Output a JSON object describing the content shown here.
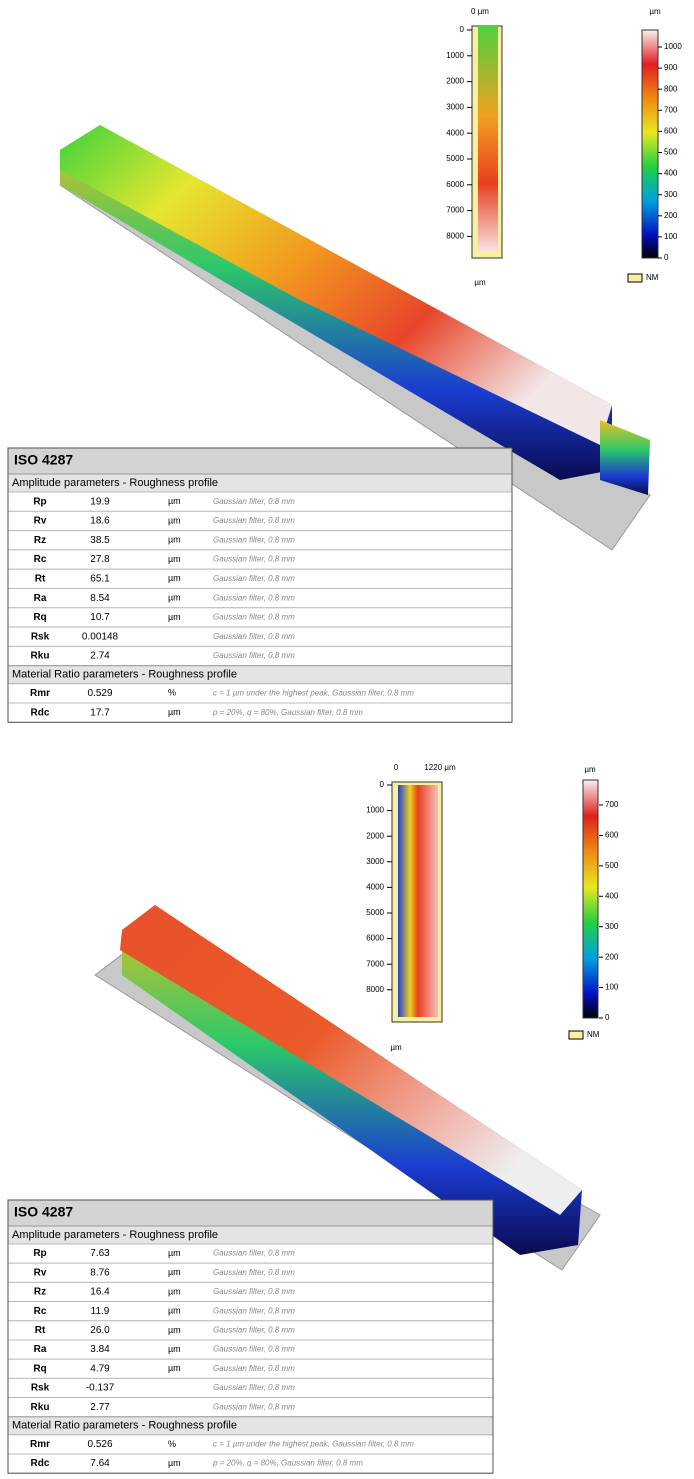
{
  "panels": [
    {
      "map": {
        "x_labels": [
          "0 µm"
        ],
        "y_ticks": [
          "0",
          "1000",
          "2000",
          "3000",
          "4000",
          "5000",
          "6000",
          "7000",
          "8000"
        ],
        "unit": "µm"
      },
      "colorbar": {
        "unit": "µm",
        "ticks": [
          "1000",
          "900",
          "800",
          "700",
          "600",
          "500",
          "400",
          "300",
          "200",
          "100",
          "0"
        ],
        "legend": "NM"
      },
      "table": {
        "title": "ISO 4287",
        "sections": [
          {
            "heading": "Amplitude parameters - Roughness profile",
            "rows": [
              {
                "name": "Rp",
                "value": "19.9",
                "unit": "µm",
                "note": "Gaussian filter, 0.8 mm"
              },
              {
                "name": "Rv",
                "value": "18.6",
                "unit": "µm",
                "note": "Gaussian filter, 0.8 mm"
              },
              {
                "name": "Rz",
                "value": "38.5",
                "unit": "µm",
                "note": "Gaussian filter, 0.8 mm"
              },
              {
                "name": "Rc",
                "value": "27.8",
                "unit": "µm",
                "note": "Gaussian filter, 0.8 mm"
              },
              {
                "name": "Rt",
                "value": "65.1",
                "unit": "µm",
                "note": "Gaussian filter, 0.8 mm"
              },
              {
                "name": "Ra",
                "value": "8.54",
                "unit": "µm",
                "note": "Gaussian filter, 0.8 mm"
              },
              {
                "name": "Rq",
                "value": "10.7",
                "unit": "µm",
                "note": "Gaussian filter, 0.8 mm"
              },
              {
                "name": "Rsk",
                "value": "0.00148",
                "note": "Gaussian filter, 0.8 mm"
              },
              {
                "name": "Rku",
                "value": "2.74",
                "note": "Gaussian filter, 0.8 mm"
              }
            ]
          },
          {
            "heading": "Material Ratio parameters - Roughness profile",
            "rows": [
              {
                "name": "Rmr",
                "value": "0.529",
                "unit": "%",
                "note": "c = 1 µm under the highest peak, Gaussian filter, 0.8 mm"
              },
              {
                "name": "Rdc",
                "value": "17.7",
                "unit": "µm",
                "note": "p = 20%, q = 80%, Gaussian filter, 0.8 mm"
              }
            ]
          }
        ]
      }
    },
    {
      "map": {
        "x_labels": [
          "0",
          "1220 µm"
        ],
        "y_ticks": [
          "0",
          "1000",
          "2000",
          "3000",
          "4000",
          "5000",
          "6000",
          "7000",
          "8000"
        ],
        "unit": "µm"
      },
      "colorbar": {
        "unit": "µm",
        "ticks": [
          "700",
          "600",
          "500",
          "400",
          "300",
          "200",
          "100",
          "0"
        ],
        "legend": "NM"
      },
      "table": {
        "title": "ISO 4287",
        "sections": [
          {
            "heading": "Amplitude parameters - Roughness profile",
            "rows": [
              {
                "name": "Rp",
                "value": "7.63",
                "unit": "µm",
                "note": "Gaussian filter, 0.8 mm"
              },
              {
                "name": "Rv",
                "value": "8.76",
                "unit": "µm",
                "note": "Gaussian filter, 0.8 mm"
              },
              {
                "name": "Rz",
                "value": "16.4",
                "unit": "µm",
                "note": "Gaussian filter, 0.8 mm"
              },
              {
                "name": "Rc",
                "value": "11.9",
                "unit": "µm",
                "note": "Gaussian filter, 0.8 mm"
              },
              {
                "name": "Rt",
                "value": "26.0",
                "unit": "µm",
                "note": "Gaussian filter, 0.8 mm"
              },
              {
                "name": "Ra",
                "value": "3.84",
                "unit": "µm",
                "note": "Gaussian filter, 0.8 mm"
              },
              {
                "name": "Rq",
                "value": "4.79",
                "unit": "µm",
                "note": "Gaussian filter, 0.8 mm"
              },
              {
                "name": "Rsk",
                "value": "-0.137",
                "note": "Gaussian filter, 0.8 mm"
              },
              {
                "name": "Rku",
                "value": "2.77",
                "note": "Gaussian filter, 0.8 mm"
              }
            ]
          },
          {
            "heading": "Material Ratio parameters - Roughness profile",
            "rows": [
              {
                "name": "Rmr",
                "value": "0.526",
                "unit": "%",
                "note": "c = 1 µm under the highest peak, Gaussian filter, 0.8 mm"
              },
              {
                "name": "Rdc",
                "value": "7.64",
                "unit": "µm",
                "note": "p = 20%, q = 80%, Gaussian filter, 0.8 mm"
              }
            ]
          }
        ]
      }
    }
  ]
}
